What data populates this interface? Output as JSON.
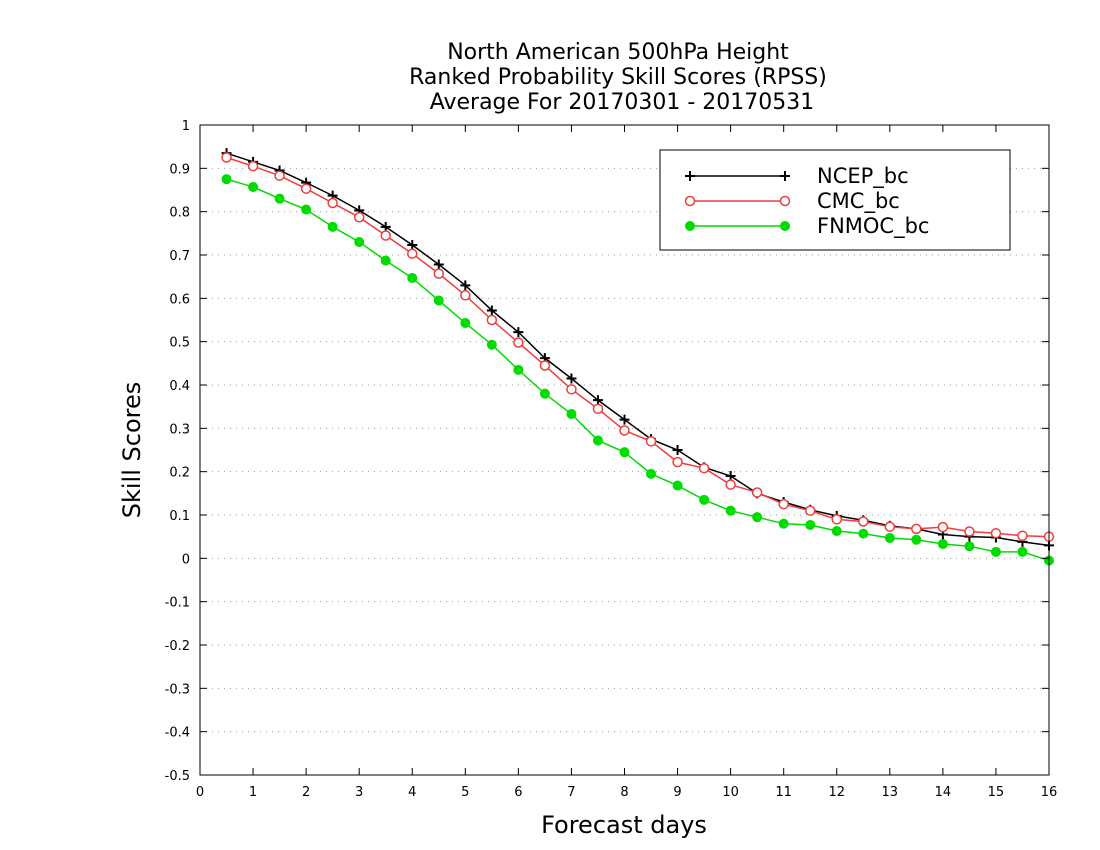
{
  "chart_data": {
    "type": "line",
    "title_lines": [
      "North American 500hPa Height",
      "Ranked Probability Skill Scores (RPSS)",
      "Average For 20170301 - 20170531"
    ],
    "xlabel": "Forecast days",
    "ylabel": "Skill Scores",
    "xlim": [
      0,
      16
    ],
    "ylim": [
      -0.5,
      1
    ],
    "x_ticks": [
      "0",
      "1",
      "2",
      "3",
      "4",
      "5",
      "6",
      "7",
      "8",
      "9",
      "10",
      "11",
      "12",
      "13",
      "14",
      "15",
      "16"
    ],
    "y_ticks": [
      "-0.5",
      "-0.4",
      "-0.3",
      "-0.2",
      "-0.1",
      "0",
      "0.1",
      "0.2",
      "0.3",
      "0.4",
      "0.5",
      "0.6",
      "0.7",
      "0.8",
      "0.9",
      "1"
    ],
    "grid": "horizontal-dotted",
    "legend_position": "top-right",
    "x": [
      0.5,
      1,
      1.5,
      2,
      2.5,
      3,
      3.5,
      4,
      4.5,
      5,
      5.5,
      6,
      6.5,
      7,
      7.5,
      8,
      8.5,
      9,
      9.5,
      10,
      10.5,
      11,
      11.5,
      12,
      12.5,
      13,
      13.5,
      14,
      14.5,
      15,
      15.5,
      16
    ],
    "series": [
      {
        "name": "NCEP_bc",
        "color": "#000000",
        "marker": "plus",
        "values": [
          0.935,
          0.915,
          0.895,
          0.867,
          0.837,
          0.803,
          0.765,
          0.723,
          0.678,
          0.63,
          0.572,
          0.522,
          0.462,
          0.415,
          0.365,
          0.32,
          0.275,
          0.25,
          0.21,
          0.19,
          0.15,
          0.13,
          0.112,
          0.098,
          0.088,
          0.075,
          0.068,
          0.055,
          0.05,
          0.048,
          0.038,
          0.03
        ]
      },
      {
        "name": "CMC_bc",
        "color": "#f03c3c",
        "marker": "open-circle",
        "values": [
          0.925,
          0.905,
          0.883,
          0.853,
          0.82,
          0.787,
          0.745,
          0.703,
          0.657,
          0.607,
          0.55,
          0.498,
          0.445,
          0.39,
          0.345,
          0.295,
          0.27,
          0.222,
          0.208,
          0.17,
          0.152,
          0.125,
          0.11,
          0.09,
          0.085,
          0.073,
          0.068,
          0.072,
          0.062,
          0.058,
          0.052,
          0.05
        ]
      },
      {
        "name": "FNMOC_bc",
        "color": "#00dc00",
        "marker": "filled-circle",
        "values": [
          0.875,
          0.857,
          0.83,
          0.805,
          0.765,
          0.73,
          0.687,
          0.647,
          0.595,
          0.543,
          0.493,
          0.435,
          0.38,
          0.333,
          0.272,
          0.245,
          0.195,
          0.168,
          0.135,
          0.11,
          0.095,
          0.08,
          0.077,
          0.063,
          0.057,
          0.047,
          0.043,
          0.033,
          0.028,
          0.015,
          0.015,
          -0.005
        ]
      }
    ]
  }
}
